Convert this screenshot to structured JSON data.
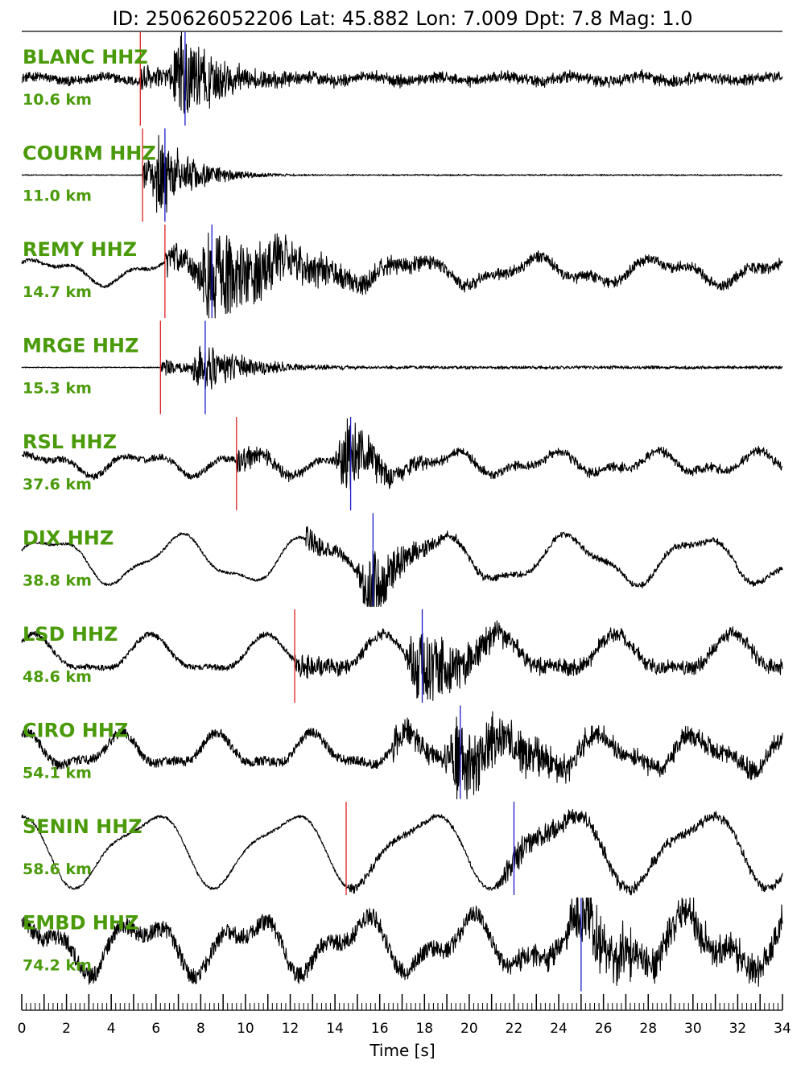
{
  "chart_data": {
    "type": "line",
    "title": "ID: 250626052206 Lat:  45.882 Lon:   7.009 Dpt:     7.8 Mag:   1.0",
    "xlabel": "Time [s]",
    "xlim": [
      0,
      34
    ],
    "xticks": [
      "0",
      "2",
      "4",
      "6",
      "8",
      "10",
      "12",
      "14",
      "16",
      "18",
      "20",
      "22",
      "24",
      "26",
      "28",
      "30",
      "32",
      "34"
    ],
    "pick_colors": {
      "p": "#e02020",
      "s": "#1a1acc"
    },
    "trace_color": "#000000",
    "label_color": "#4a9a0a",
    "traces": [
      {
        "station": "BLANC HHZ",
        "distance": "10.6 km",
        "p_pick": 5.3,
        "s_pick": 7.3,
        "noise": 0.1,
        "burst_amp": 1.0,
        "burst_decay": 1.8,
        "coda": 0.05,
        "waves": [
          [
            0.05,
            3.0,
            0.3
          ]
        ]
      },
      {
        "station": "COURM HHZ",
        "distance": "11.0 km",
        "p_pick": 5.4,
        "s_pick": 6.4,
        "noise": 0.01,
        "burst_amp": 0.85,
        "burst_decay": 1.5,
        "coda": 0.01,
        "waves": []
      },
      {
        "station": "REMY HHZ",
        "distance": "14.7 km",
        "p_pick": 6.4,
        "s_pick": 8.5,
        "noise": 0.04,
        "burst_amp": 1.0,
        "burst_decay": 4.0,
        "coda": 0.1,
        "waves": [
          [
            0.22,
            5.5,
            0.4
          ],
          [
            0.1,
            2.3,
            1.1
          ]
        ]
      },
      {
        "station": "MRGE HHZ",
        "distance": "15.3 km",
        "p_pick": 6.2,
        "s_pick": 8.2,
        "noise": 0.01,
        "burst_amp": 0.55,
        "burst_decay": 2.0,
        "coda": 0.03,
        "waves": []
      },
      {
        "station": "RSL HHZ",
        "distance": "37.6 km",
        "p_pick": 9.6,
        "s_pick": 14.7,
        "noise": 0.07,
        "burst_amp": 0.85,
        "burst_decay": 1.6,
        "coda": 0.05,
        "waves": [
          [
            0.18,
            4.6,
            0.5
          ],
          [
            0.1,
            2.2,
            1.8
          ]
        ]
      },
      {
        "station": "DIX HHZ",
        "distance": "38.8 km",
        "p_pick": null,
        "s_pick": 15.7,
        "noise": 0.03,
        "burst_amp": 0.9,
        "burst_decay": 1.5,
        "coda": 0.05,
        "waves": [
          [
            0.45,
            5.8,
            0.2
          ],
          [
            0.12,
            2.4,
            1.3
          ]
        ]
      },
      {
        "station": "LSD HHZ",
        "distance": "48.6 km",
        "p_pick": 12.2,
        "s_pick": 17.9,
        "noise": 0.06,
        "burst_amp": 0.9,
        "burst_decay": 2.5,
        "coda": 0.12,
        "waves": [
          [
            0.35,
            5.2,
            0.9
          ],
          [
            0.12,
            2.6,
            0.3
          ]
        ]
      },
      {
        "station": "CIRO HHZ",
        "distance": "54.1 km",
        "p_pick": null,
        "s_pick": 19.6,
        "noise": 0.1,
        "burst_amp": 0.9,
        "burst_decay": 3.0,
        "coda": 0.15,
        "waves": [
          [
            0.3,
            4.3,
            1.4
          ],
          [
            0.12,
            2.1,
            0.6
          ]
        ]
      },
      {
        "station": "SENIN HHZ",
        "distance": "58.6 km",
        "p_pick": 14.5,
        "s_pick": 22.0,
        "noise": 0.03,
        "burst_amp": 0.3,
        "burst_decay": 4.0,
        "coda": 0.08,
        "waves": [
          [
            0.7,
            6.2,
            2.1
          ],
          [
            0.2,
            3.1,
            0.4
          ]
        ]
      },
      {
        "station": "EMBD HHZ",
        "distance": "74.2 km",
        "p_pick": null,
        "s_pick": 25.0,
        "noise": 0.18,
        "burst_amp": 0.55,
        "burst_decay": 5.0,
        "coda": 0.2,
        "waves": [
          [
            0.45,
            4.9,
            1.0
          ],
          [
            0.25,
            2.3,
            2.5
          ]
        ]
      }
    ]
  }
}
